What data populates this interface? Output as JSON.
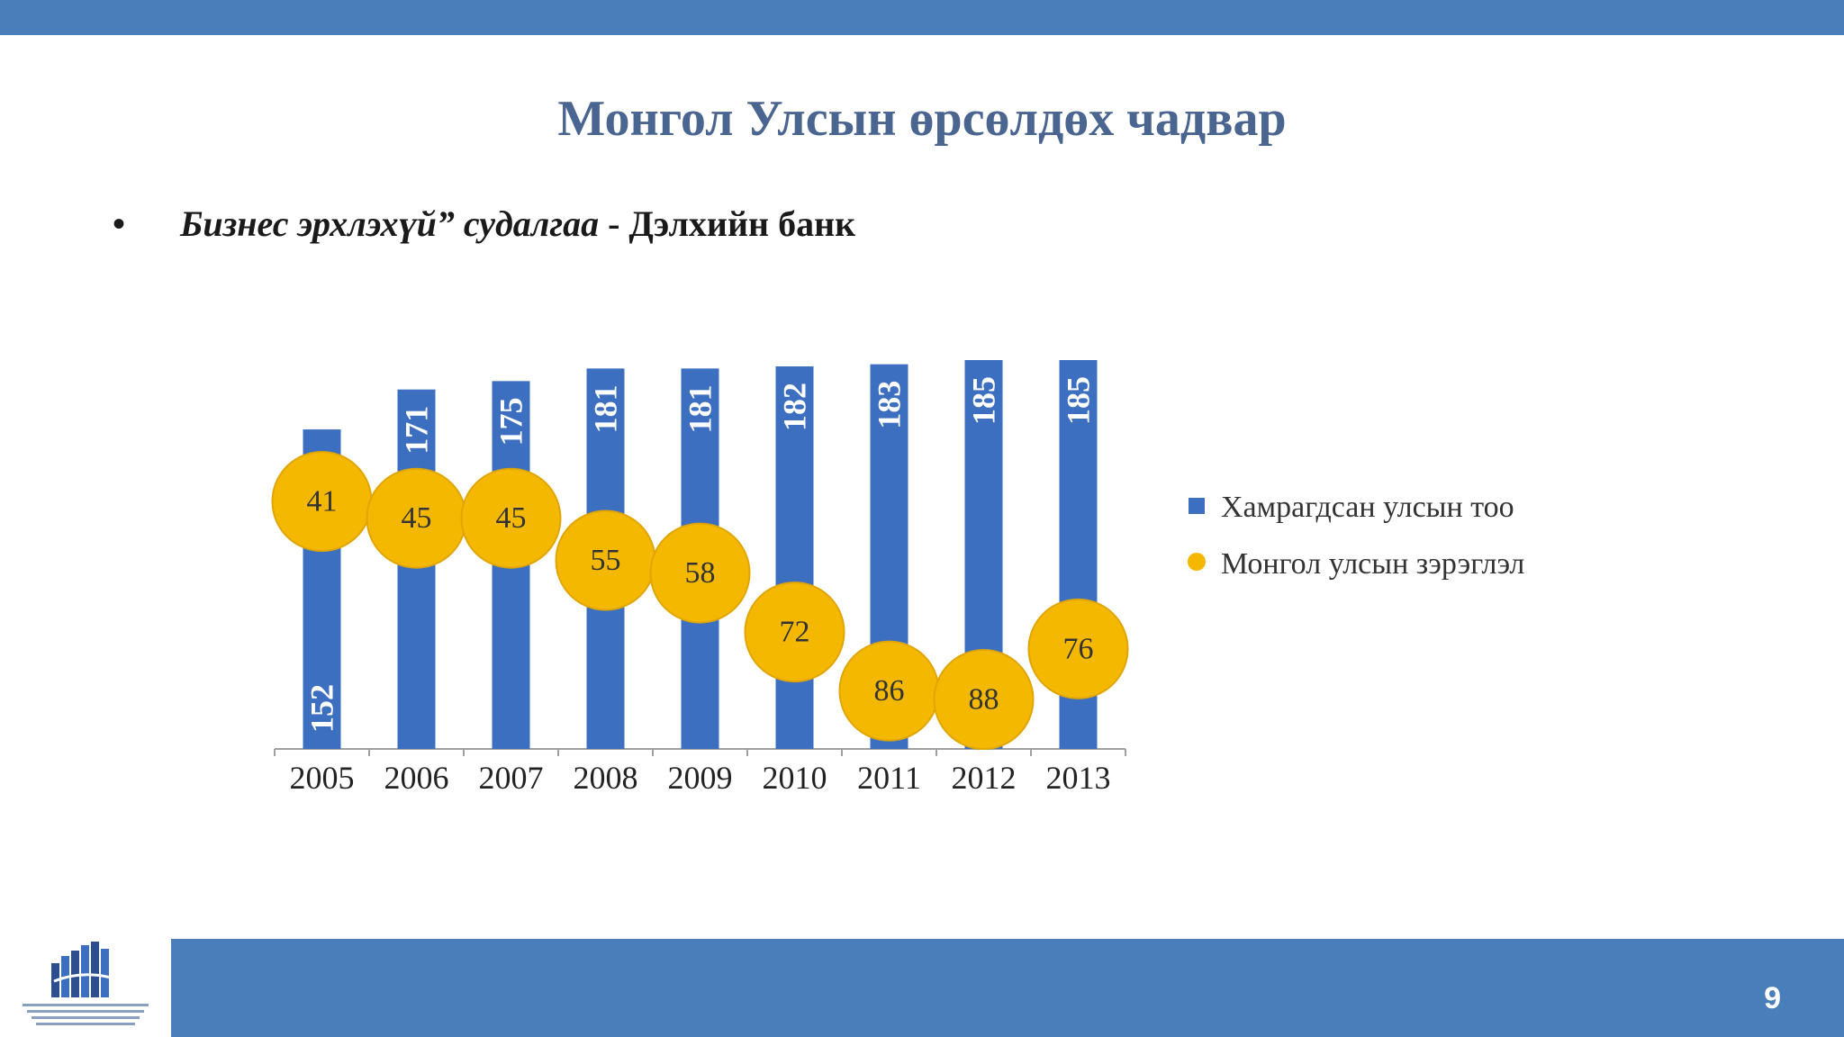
{
  "slide": {
    "title": "Монгол Улсын өрсөлдөх чадвар",
    "subtitle_bullet": "•",
    "subtitle_italic": "Бизнес эрхлэхүй” судалгаа",
    "subtitle_rest": " - Дэлхийн банк",
    "page_number": "9"
  },
  "colors": {
    "bar": "#3d6fc0",
    "marker": "#f5b800",
    "header_bar": "#4a7ebb"
  },
  "chart_data": {
    "type": "bar",
    "categories": [
      "2005",
      "2006",
      "2007",
      "2008",
      "2009",
      "2010",
      "2011",
      "2012",
      "2013"
    ],
    "series": [
      {
        "name": "Хамрагдсан улсын тоо",
        "type": "bar",
        "values": [
          152,
          171,
          175,
          181,
          181,
          182,
          183,
          185,
          185
        ]
      },
      {
        "name": "Монгол улсын зэрэглэл",
        "type": "marker",
        "values": [
          41,
          45,
          45,
          55,
          58,
          72,
          86,
          88,
          76
        ]
      }
    ],
    "legend_position": "right",
    "grid": false
  }
}
